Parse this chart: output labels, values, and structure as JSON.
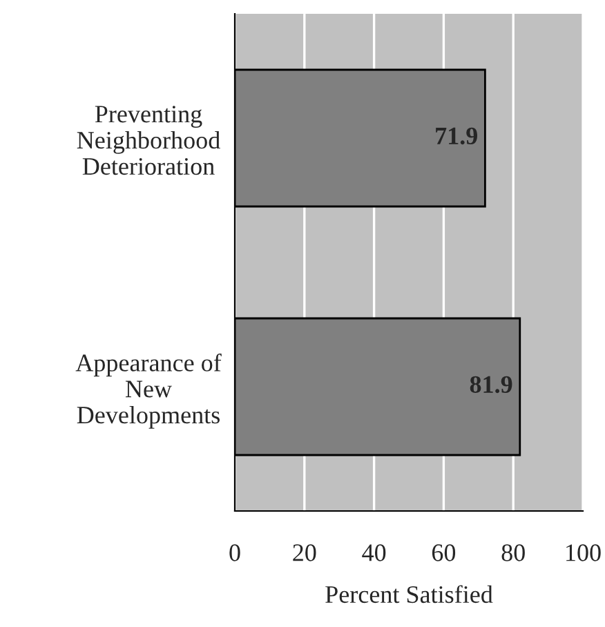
{
  "chart_data": {
    "type": "bar",
    "orientation": "horizontal",
    "xlabel": "Percent Satisfied",
    "categories": [
      "Preventing\nNeighborhood\nDeterioration",
      "Appearance of\nNew\nDevelopments"
    ],
    "values": [
      71.9,
      81.9
    ],
    "color": "#808080",
    "data_labels": true,
    "xlim": [
      0,
      100
    ],
    "xticks": [
      0,
      20,
      40,
      60,
      80,
      100
    ],
    "grid": "x"
  }
}
